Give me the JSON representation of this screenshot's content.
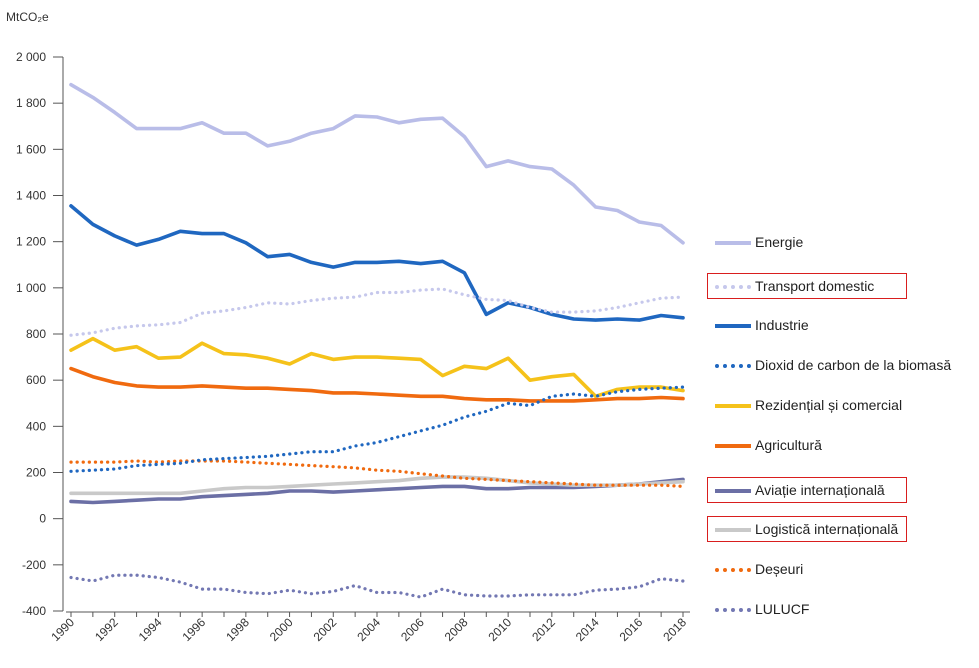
{
  "chart_data": {
    "type": "line",
    "unit_label": "MtCO₂e",
    "ylim": [
      -400,
      2000
    ],
    "y_ticks": [
      -400,
      -200,
      0,
      200,
      400,
      600,
      800,
      1000,
      1200,
      1400,
      1600,
      1800,
      2000
    ],
    "y_tick_labels": [
      "-400",
      "-200",
      "0",
      "200",
      "400",
      "600",
      "800",
      "1 000",
      "1 200",
      "1 400",
      "1 600",
      "1 800",
      "2 000"
    ],
    "x": [
      1990,
      1991,
      1992,
      1993,
      1994,
      1995,
      1996,
      1997,
      1998,
      1999,
      2000,
      2001,
      2002,
      2003,
      2004,
      2005,
      2006,
      2007,
      2008,
      2009,
      2010,
      2011,
      2012,
      2013,
      2014,
      2015,
      2016,
      2017,
      2018
    ],
    "x_ticks": [
      1990,
      1992,
      1994,
      1996,
      1998,
      2000,
      2002,
      2004,
      2006,
      2008,
      2010,
      2012,
      2014,
      2016,
      2018
    ],
    "legend_position": "right",
    "grid": false,
    "series": [
      {
        "name": "Energie",
        "color": "#b9bde8",
        "style": "solid",
        "highlighted": false,
        "values": [
          1880,
          1825,
          1760,
          1690,
          1690,
          1690,
          1715,
          1670,
          1670,
          1615,
          1635,
          1670,
          1690,
          1745,
          1740,
          1715,
          1730,
          1735,
          1655,
          1525,
          1550,
          1525,
          1515,
          1445,
          1350,
          1335,
          1285,
          1270,
          1195
        ]
      },
      {
        "name": "Transport domestic",
        "color": "#c6c8ec",
        "style": "dotted",
        "highlighted": true,
        "values": [
          795,
          805,
          825,
          835,
          840,
          850,
          890,
          900,
          915,
          935,
          930,
          945,
          955,
          960,
          980,
          980,
          990,
          995,
          970,
          950,
          945,
          915,
          895,
          895,
          900,
          915,
          935,
          955,
          960
        ]
      },
      {
        "name": "Industrie",
        "color": "#1f67c0",
        "style": "solid",
        "highlighted": false,
        "values": [
          1355,
          1275,
          1225,
          1185,
          1210,
          1245,
          1235,
          1235,
          1195,
          1135,
          1145,
          1110,
          1090,
          1110,
          1110,
          1115,
          1105,
          1115,
          1065,
          885,
          935,
          915,
          885,
          865,
          860,
          865,
          860,
          880,
          870
        ]
      },
      {
        "name": "Dioxid de carbon de la biomasă",
        "color": "#1f67c0",
        "style": "dotted",
        "highlighted": false,
        "values": [
          205,
          210,
          215,
          230,
          235,
          240,
          255,
          260,
          265,
          270,
          280,
          290,
          290,
          315,
          330,
          355,
          380,
          405,
          440,
          465,
          500,
          490,
          530,
          540,
          530,
          550,
          560,
          565,
          570
        ]
      },
      {
        "name": "Rezidențial și comercial",
        "color": "#f5c21a",
        "style": "solid",
        "highlighted": false,
        "values": [
          730,
          780,
          730,
          745,
          695,
          700,
          760,
          715,
          710,
          695,
          670,
          715,
          690,
          700,
          700,
          695,
          690,
          620,
          660,
          650,
          695,
          600,
          615,
          625,
          530,
          560,
          570,
          570,
          555
        ]
      },
      {
        "name": "Agricultură",
        "color": "#f06a0f",
        "style": "solid",
        "highlighted": false,
        "values": [
          650,
          615,
          590,
          575,
          570,
          570,
          575,
          570,
          565,
          565,
          560,
          555,
          545,
          545,
          540,
          535,
          530,
          530,
          520,
          515,
          515,
          510,
          510,
          510,
          515,
          520,
          520,
          525,
          520
        ]
      },
      {
        "name": "Aviație internațională",
        "color": "#6b6fa5",
        "style": "solid",
        "highlighted": true,
        "values": [
          75,
          70,
          75,
          80,
          85,
          85,
          95,
          100,
          105,
          110,
          120,
          120,
          115,
          120,
          125,
          130,
          135,
          140,
          140,
          130,
          130,
          135,
          135,
          135,
          140,
          145,
          150,
          160,
          170
        ]
      },
      {
        "name": "Logistică internațională",
        "color": "#c9c9c9",
        "style": "solid",
        "highlighted": true,
        "values": [
          110,
          110,
          110,
          110,
          110,
          110,
          120,
          130,
          135,
          135,
          140,
          145,
          150,
          155,
          160,
          165,
          175,
          180,
          180,
          175,
          165,
          155,
          150,
          145,
          145,
          145,
          150,
          155,
          160
        ]
      },
      {
        "name": "Deșeuri",
        "color": "#f06a0f",
        "style": "dotted",
        "highlighted": false,
        "values": [
          245,
          245,
          245,
          250,
          245,
          250,
          250,
          250,
          245,
          240,
          235,
          230,
          225,
          220,
          210,
          205,
          195,
          185,
          175,
          170,
          165,
          160,
          155,
          150,
          145,
          145,
          145,
          145,
          140
        ]
      },
      {
        "name": "LULUCF",
        "color": "#7378b3",
        "style": "dotted",
        "highlighted": false,
        "values": [
          -255,
          -270,
          -245,
          -245,
          -255,
          -275,
          -305,
          -305,
          -320,
          -325,
          -310,
          -325,
          -315,
          -290,
          -320,
          -320,
          -340,
          -305,
          -330,
          -335,
          -335,
          -330,
          -330,
          -330,
          -310,
          -305,
          -295,
          -260,
          -270
        ]
      }
    ]
  }
}
